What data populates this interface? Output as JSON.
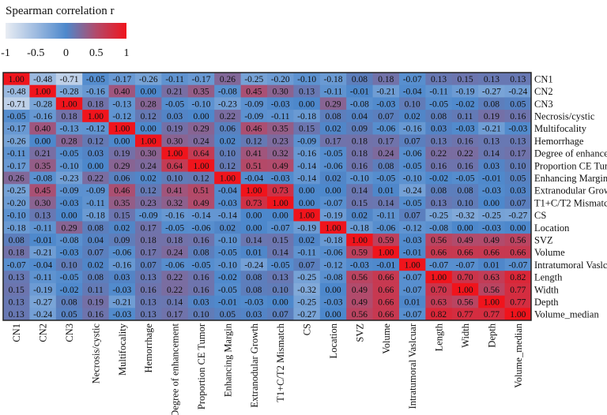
{
  "chart_data": {
    "type": "heatmap",
    "title": "",
    "legend": {
      "title": "Spearman correlation  r",
      "ticks": [
        "-1",
        "-0.5",
        "0",
        "0.5",
        "1"
      ],
      "range": [
        -1,
        1
      ],
      "placement": "top-left",
      "colors": {
        "min": "#e9edf3",
        "low": "#9ebbe0",
        "mid": "#4d88cc",
        "high": "#b34a6a",
        "max": "#f0141c"
      }
    },
    "labels": [
      "CN1",
      "CN2",
      "CN3",
      "Necrosis/cystic",
      "Multifocality",
      "Hemorrhage",
      "Degree of enhancement",
      "Proportion CE Tumor",
      "Enhancing Margin",
      "Extranodular Growth",
      "T1+C/T2 Mismatch",
      "CS",
      "Location",
      "SVZ",
      "Volume",
      "Intratumoral Vaslcuar",
      "Length",
      "Width",
      "Depth",
      "Volume_median"
    ],
    "values": [
      [
        "1.00",
        "-0.48",
        "-0.71",
        "-0.05",
        "-0.17",
        "-0.26",
        "-0.11",
        "-0.17",
        "0.26",
        "-0.25",
        "-0.20",
        "-0.10",
        "-0.18",
        "0.08",
        "0.18",
        "-0.07",
        "0.13",
        "0.15",
        "0.13",
        "0.13"
      ],
      [
        "-0.48",
        "1.00",
        "-0.28",
        "-0.16",
        "0.40",
        "0.00",
        "0.21",
        "0.35",
        "-0.08",
        "0.45",
        "0.30",
        "0.13",
        "-0.11",
        "-0.01",
        "-0.21",
        "-0.04",
        "-0.11",
        "-0.19",
        "-0.27",
        "-0.24"
      ],
      [
        "-0.71",
        "-0.28",
        "1.00",
        "0.18",
        "-0.13",
        "0.28",
        "-0.05",
        "-0.10",
        "-0.23",
        "-0.09",
        "-0.03",
        "0.00",
        "0.29",
        "-0.08",
        "-0.03",
        "0.10",
        "-0.05",
        "-0.02",
        "0.08",
        "0.05"
      ],
      [
        "-0.05",
        "-0.16",
        "0.18",
        "1.00",
        "-0.12",
        "0.12",
        "0.03",
        "0.00",
        "0.22",
        "-0.09",
        "-0.11",
        "-0.18",
        "0.08",
        "0.04",
        "0.07",
        "0.02",
        "0.08",
        "0.11",
        "0.19",
        "0.16"
      ],
      [
        "-0.17",
        "0.40",
        "-0.13",
        "-0.12",
        "1.00",
        "0.00",
        "0.19",
        "0.29",
        "0.06",
        "0.46",
        "0.35",
        "0.15",
        "0.02",
        "0.09",
        "-0.06",
        "-0.16",
        "0.03",
        "-0.03",
        "-0.21",
        "-0.03"
      ],
      [
        "-0.26",
        "0.00",
        "0.28",
        "0.12",
        "0.00",
        "1.00",
        "0.30",
        "0.24",
        "0.02",
        "0.12",
        "0.23",
        "-0.09",
        "0.17",
        "0.18",
        "0.17",
        "0.07",
        "0.13",
        "0.16",
        "0.13",
        "0.13"
      ],
      [
        "-0.11",
        "0.21",
        "-0.05",
        "0.03",
        "0.19",
        "0.30",
        "1.00",
        "0.64",
        "0.10",
        "0.41",
        "0.32",
        "-0.16",
        "-0.05",
        "0.18",
        "0.24",
        "-0.06",
        "0.22",
        "0.22",
        "0.14",
        "0.17"
      ],
      [
        "-0.17",
        "0.35",
        "-0.10",
        "0.00",
        "0.29",
        "0.24",
        "0.64",
        "1.00",
        "0.12",
        "0.51",
        "0.49",
        "-0.14",
        "-0.06",
        "0.16",
        "0.08",
        "-0.05",
        "0.16",
        "0.16",
        "0.03",
        "0.10"
      ],
      [
        "0.26",
        "-0.08",
        "-0.23",
        "0.22",
        "0.06",
        "0.02",
        "0.10",
        "0.12",
        "1.00",
        "-0.04",
        "-0.03",
        "-0.14",
        "0.02",
        "-0.10",
        "-0.05",
        "-0.10",
        "-0.02",
        "-0.05",
        "-0.01",
        "0.05"
      ],
      [
        "-0.25",
        "0.45",
        "-0.09",
        "-0.09",
        "0.46",
        "0.12",
        "0.41",
        "0.51",
        "-0.04",
        "1.00",
        "0.73",
        "0.00",
        "0.00",
        "0.14",
        "0.01",
        "-0.24",
        "0.08",
        "0.08",
        "-0.03",
        "0.03"
      ],
      [
        "-0.20",
        "0.30",
        "-0.03",
        "-0.11",
        "0.35",
        "0.23",
        "0.32",
        "0.49",
        "-0.03",
        "0.73",
        "1.00",
        "0.00",
        "-0.07",
        "0.15",
        "0.14",
        "-0.05",
        "0.13",
        "0.10",
        "0.00",
        "0.07"
      ],
      [
        "-0.10",
        "0.13",
        "0.00",
        "-0.18",
        "0.15",
        "-0.09",
        "-0.16",
        "-0.14",
        "-0.14",
        "0.00",
        "0.00",
        "1.00",
        "-0.19",
        "0.02",
        "-0.11",
        "0.07",
        "-0.25",
        "-0.32",
        "-0.25",
        "-0.27"
      ],
      [
        "-0.18",
        "-0.11",
        "0.29",
        "0.08",
        "0.02",
        "0.17",
        "-0.05",
        "-0.06",
        "0.02",
        "0.00",
        "-0.07",
        "-0.19",
        "1.00",
        "-0.18",
        "-0.06",
        "-0.12",
        "-0.08",
        "0.00",
        "-0.03",
        "0.00"
      ],
      [
        "0.08",
        "-0.01",
        "-0.08",
        "0.04",
        "0.09",
        "0.18",
        "0.18",
        "0.16",
        "-0.10",
        "0.14",
        "0.15",
        "0.02",
        "-0.18",
        "1.00",
        "0.59",
        "-0.03",
        "0.56",
        "0.49",
        "0.49",
        "0.56"
      ],
      [
        "0.18",
        "-0.21",
        "-0.03",
        "0.07",
        "-0.06",
        "0.17",
        "0.24",
        "0.08",
        "-0.05",
        "0.01",
        "0.14",
        "-0.11",
        "-0.06",
        "0.59",
        "1.00",
        "-0.01",
        "0.66",
        "0.66",
        "0.66",
        "0.66"
      ],
      [
        "-0.07",
        "-0.04",
        "0.10",
        "0.02",
        "-0.16",
        "0.07",
        "-0.06",
        "-0.05",
        "-0.10",
        "-0.24",
        "-0.05",
        "0.07",
        "-0.12",
        "-0.03",
        "-0.01",
        "1.00",
        "-0.07",
        "-0.07",
        "0.01",
        "-0.07"
      ],
      [
        "0.13",
        "-0.11",
        "-0.05",
        "0.08",
        "0.03",
        "0.13",
        "0.22",
        "0.16",
        "-0.02",
        "0.08",
        "0.13",
        "-0.25",
        "-0.08",
        "0.56",
        "0.66",
        "-0.07",
        "1.00",
        "0.70",
        "0.63",
        "0.82"
      ],
      [
        "0.15",
        "-0.19",
        "-0.02",
        "0.11",
        "-0.03",
        "0.16",
        "0.22",
        "0.16",
        "-0.05",
        "0.08",
        "0.10",
        "-0.32",
        "0.00",
        "0.49",
        "0.66",
        "-0.07",
        "0.70",
        "1.00",
        "0.56",
        "0.77"
      ],
      [
        "0.13",
        "-0.27",
        "0.08",
        "0.19",
        "-0.21",
        "0.13",
        "0.14",
        "0.03",
        "-0.01",
        "-0.03",
        "0.00",
        "-0.25",
        "-0.03",
        "0.49",
        "0.66",
        "0.01",
        "0.63",
        "0.56",
        "1.00",
        "0.77"
      ],
      [
        "0.13",
        "-0.24",
        "0.05",
        "0.16",
        "-0.03",
        "0.13",
        "0.17",
        "0.10",
        "0.05",
        "0.03",
        "0.07",
        "-0.27",
        "0.00",
        "0.56",
        "0.66",
        "-0.07",
        "0.82",
        "0.77",
        "0.77",
        "1.00"
      ]
    ]
  }
}
